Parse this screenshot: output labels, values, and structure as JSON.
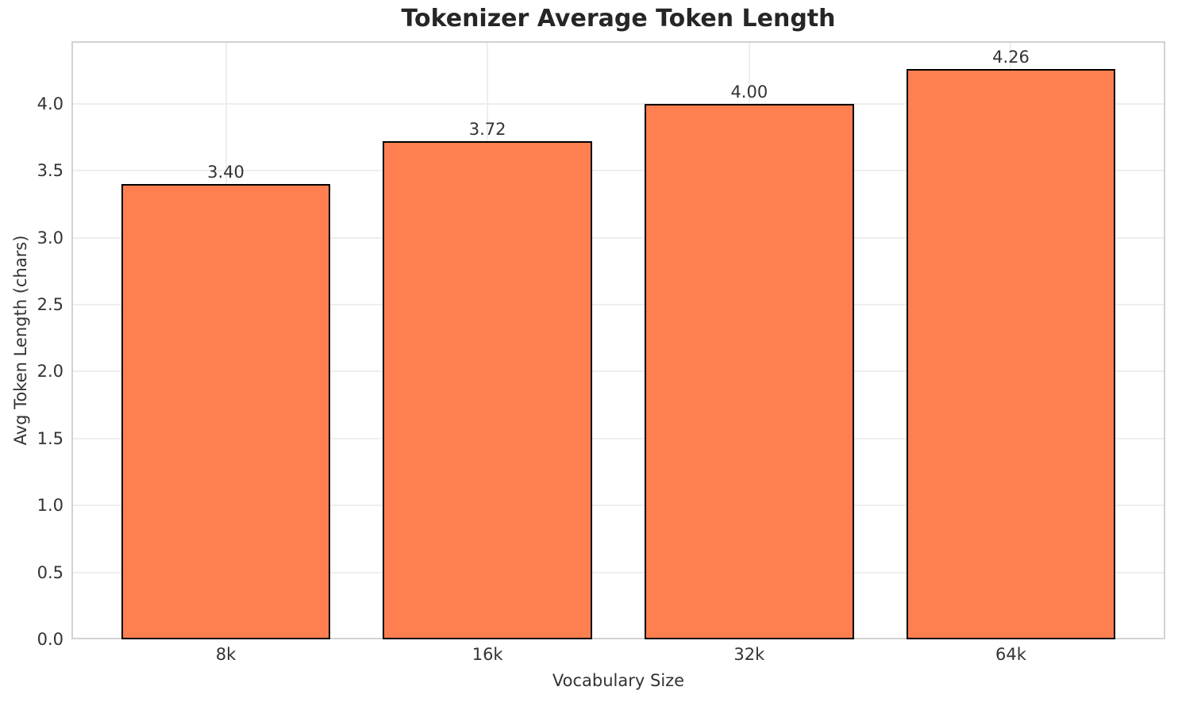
{
  "chart_data": {
    "type": "bar",
    "title": "Tokenizer Average Token Length",
    "xlabel": "Vocabulary Size",
    "ylabel": "Avg Token Length (chars)",
    "categories": [
      "8k",
      "16k",
      "32k",
      "64k"
    ],
    "values": [
      3.4,
      3.72,
      4.0,
      4.26
    ],
    "labels": [
      "3.40",
      "3.72",
      "4.00",
      "4.26"
    ],
    "y_ticks": [
      0.0,
      0.5,
      1.0,
      1.5,
      2.0,
      2.5,
      3.0,
      3.5,
      4.0
    ],
    "y_tick_labels": [
      "0.0",
      "0.5",
      "1.0",
      "1.5",
      "2.0",
      "2.5",
      "3.0",
      "3.5",
      "4.0"
    ],
    "ylim": [
      0,
      4.468
    ],
    "bar_width_fraction": 0.8,
    "grid": true,
    "legend": null,
    "colors": {
      "bar_fill": "#FF7F50",
      "bar_edge": "#000000",
      "grid": "#eeeeee",
      "spine": "#d2d2d2",
      "text": "#333333",
      "title": "#262626",
      "background": "#ffffff"
    }
  }
}
